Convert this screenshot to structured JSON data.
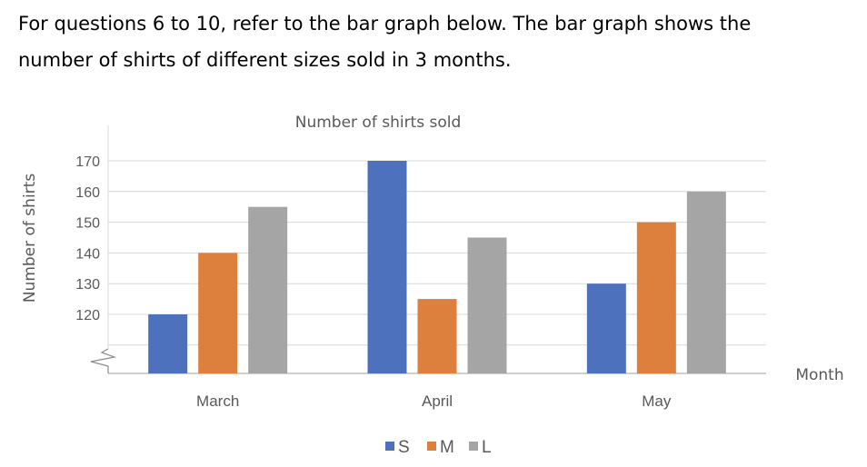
{
  "prompt": {
    "line1": "For questions 6 to 10, refer to the bar graph below. The bar graph shows the",
    "line2": "number of shirts of different sizes sold in 3 months."
  },
  "chart_data": {
    "type": "bar",
    "title": "Number of shirts sold",
    "xlabel": "Month",
    "ylabel": "Number of shirts",
    "categories": [
      "March",
      "April",
      "May"
    ],
    "series": [
      {
        "name": "S",
        "color": "#4e71be",
        "values": [
          120,
          170,
          130
        ]
      },
      {
        "name": "M",
        "color": "#dd7f3d",
        "values": [
          140,
          125,
          150
        ]
      },
      {
        "name": "L",
        "color": "#a5a5a5",
        "values": [
          155,
          145,
          160
        ]
      }
    ],
    "ylim": [
      110,
      170
    ],
    "axis_break": true,
    "yticks": [
      120,
      130,
      140,
      150,
      160,
      170
    ],
    "grid": true,
    "legend": "bottom"
  }
}
